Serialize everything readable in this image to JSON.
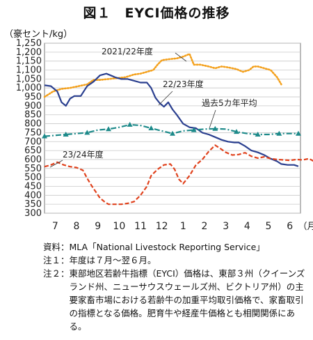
{
  "title": "図１　EYCI価格の推移",
  "chart_data": {
    "type": "line",
    "unit_label": "（豪セント/kg）",
    "ylim": [
      300,
      1250
    ],
    "y_step": 50,
    "x_categories": [
      "7",
      "8",
      "9",
      "10",
      "11",
      "12",
      "1",
      "2",
      "3",
      "4",
      "5",
      "6"
    ],
    "x_unit": "（月）",
    "grid": "horizontal",
    "series": [
      {
        "name": "2021/22年度",
        "color": "#f4a11d",
        "style": "dotted",
        "points": [
          [
            0,
            950
          ],
          [
            0.4,
            980
          ],
          [
            0.8,
            995
          ],
          [
            1.2,
            1000
          ],
          [
            1.6,
            1010
          ],
          [
            2,
            1020
          ],
          [
            2.3,
            1045
          ],
          [
            2.6,
            1045
          ],
          [
            3,
            1050
          ],
          [
            3.4,
            1055
          ],
          [
            3.8,
            1060
          ],
          [
            4.2,
            1075
          ],
          [
            4.5,
            1080
          ],
          [
            4.8,
            1090
          ],
          [
            5.1,
            1100
          ],
          [
            5.3,
            1130
          ],
          [
            5.5,
            1155
          ],
          [
            5.8,
            1160
          ],
          [
            6.2,
            1165
          ],
          [
            6.5,
            1175
          ],
          [
            6.8,
            1190
          ],
          [
            7.0,
            1130
          ],
          [
            7.3,
            1130
          ],
          [
            7.7,
            1120
          ],
          [
            8.0,
            1110
          ],
          [
            8.3,
            1120
          ],
          [
            8.6,
            1115
          ],
          [
            9.0,
            1105
          ],
          [
            9.3,
            1090
          ],
          [
            9.6,
            1100
          ],
          [
            9.8,
            1120
          ],
          [
            10.0,
            1120
          ],
          [
            10.3,
            1110
          ],
          [
            10.6,
            1100
          ],
          [
            10.9,
            1060
          ],
          [
            11.1,
            1020
          ]
        ]
      },
      {
        "name": "22/23年度",
        "color": "#2a3f8f",
        "style": "solid",
        "points": [
          [
            0,
            1015
          ],
          [
            0.3,
            1010
          ],
          [
            0.6,
            980
          ],
          [
            0.8,
            920
          ],
          [
            1.0,
            900
          ],
          [
            1.2,
            940
          ],
          [
            1.4,
            955
          ],
          [
            1.7,
            955
          ],
          [
            2.0,
            1010
          ],
          [
            2.3,
            1035
          ],
          [
            2.6,
            1070
          ],
          [
            2.9,
            1080
          ],
          [
            3.1,
            1070
          ],
          [
            3.3,
            1060
          ],
          [
            3.6,
            1050
          ],
          [
            3.9,
            1050
          ],
          [
            4.2,
            1040
          ],
          [
            4.5,
            1030
          ],
          [
            4.8,
            1030
          ],
          [
            5.0,
            1000
          ],
          [
            5.2,
            945
          ],
          [
            5.4,
            915
          ],
          [
            5.6,
            895
          ],
          [
            5.8,
            920
          ],
          [
            6.0,
            880
          ],
          [
            6.2,
            850
          ],
          [
            6.5,
            800
          ],
          [
            6.8,
            780
          ],
          [
            7.1,
            775
          ],
          [
            7.4,
            750
          ],
          [
            7.7,
            740
          ],
          [
            8.0,
            725
          ],
          [
            8.3,
            710
          ],
          [
            8.6,
            700
          ],
          [
            8.9,
            695
          ],
          [
            9.1,
            695
          ],
          [
            9.4,
            675
          ],
          [
            9.7,
            650
          ],
          [
            10.0,
            640
          ],
          [
            10.3,
            625
          ],
          [
            10.6,
            605
          ],
          [
            10.9,
            590
          ],
          [
            11.1,
            575
          ],
          [
            11.4,
            570
          ],
          [
            11.7,
            570
          ],
          [
            11.9,
            562
          ]
        ]
      },
      {
        "name": "過去5カ年平均",
        "color": "#1d8a8a",
        "style": "dashdot",
        "points": [
          [
            0,
            730
          ],
          [
            0.5,
            735
          ],
          [
            1,
            740
          ],
          [
            1.5,
            745
          ],
          [
            2,
            750
          ],
          [
            2.5,
            765
          ],
          [
            3,
            770
          ],
          [
            3.5,
            780
          ],
          [
            4,
            795
          ],
          [
            4.5,
            790
          ],
          [
            5,
            775
          ],
          [
            5.5,
            760
          ],
          [
            6,
            745
          ],
          [
            6.5,
            760
          ],
          [
            7,
            765
          ],
          [
            7.5,
            770
          ],
          [
            8,
            772
          ],
          [
            8.5,
            770
          ],
          [
            9,
            755
          ],
          [
            9.5,
            745
          ],
          [
            10,
            740
          ],
          [
            10.5,
            740
          ],
          [
            11,
            745
          ],
          [
            11.5,
            745
          ],
          [
            11.9,
            745
          ]
        ]
      },
      {
        "name": "23/24年度",
        "color": "#e0411c",
        "style": "dashed",
        "points": [
          [
            0,
            560
          ],
          [
            0.3,
            570
          ],
          [
            0.6,
            585
          ],
          [
            0.9,
            570
          ],
          [
            1.2,
            560
          ],
          [
            1.5,
            555
          ],
          [
            1.8,
            540
          ],
          [
            2.0,
            495
          ],
          [
            2.2,
            455
          ],
          [
            2.4,
            420
          ],
          [
            2.6,
            385
          ],
          [
            2.8,
            365
          ],
          [
            3.0,
            350
          ],
          [
            3.3,
            350
          ],
          [
            3.6,
            350
          ],
          [
            3.9,
            355
          ],
          [
            4.2,
            365
          ],
          [
            4.5,
            400
          ],
          [
            4.8,
            450
          ],
          [
            5.0,
            510
          ],
          [
            5.3,
            545
          ],
          [
            5.6,
            570
          ],
          [
            5.9,
            575
          ],
          [
            6.1,
            545
          ],
          [
            6.3,
            490
          ],
          [
            6.5,
            465
          ],
          [
            6.8,
            510
          ],
          [
            7.1,
            570
          ],
          [
            7.4,
            600
          ],
          [
            7.7,
            645
          ],
          [
            8.0,
            680
          ],
          [
            8.2,
            665
          ],
          [
            8.5,
            640
          ],
          [
            8.8,
            625
          ],
          [
            9.1,
            628
          ],
          [
            9.4,
            638
          ],
          [
            9.7,
            618
          ],
          [
            10.0,
            608
          ],
          [
            10.3,
            615
          ],
          [
            10.6,
            605
          ],
          [
            10.9,
            600
          ],
          [
            11.2,
            598
          ],
          [
            11.5,
            595
          ],
          [
            11.8,
            600
          ],
          [
            12.1,
            598
          ],
          [
            12.4,
            605
          ],
          [
            12.6,
            592
          ]
        ]
      }
    ],
    "labels": [
      {
        "text": "2021/22年度",
        "series": "2021/22年度"
      },
      {
        "text": "22/23年度",
        "series": "22/23年度"
      },
      {
        "text": "過去5カ年平均",
        "series": "過去5カ年平均"
      },
      {
        "text": "23/24年度",
        "series": "23/24年度"
      }
    ]
  },
  "notes": [
    {
      "label": "資料：",
      "text": "MLA「National Livestock Reporting Service」"
    },
    {
      "label": "注１：",
      "text": "年度は７月～翌６月。"
    },
    {
      "label": "注２：",
      "text": "東部地区若齢牛指標（EYCI）価格は、東部３州（クイーンズランド州、ニューサウスウェールズ州、ビクトリア州）の主要家畜市場における若齢牛の加重平均取引価格で、家畜取引の指標となる価格。肥育牛や経産牛価格とも相関関係にある。"
    }
  ]
}
